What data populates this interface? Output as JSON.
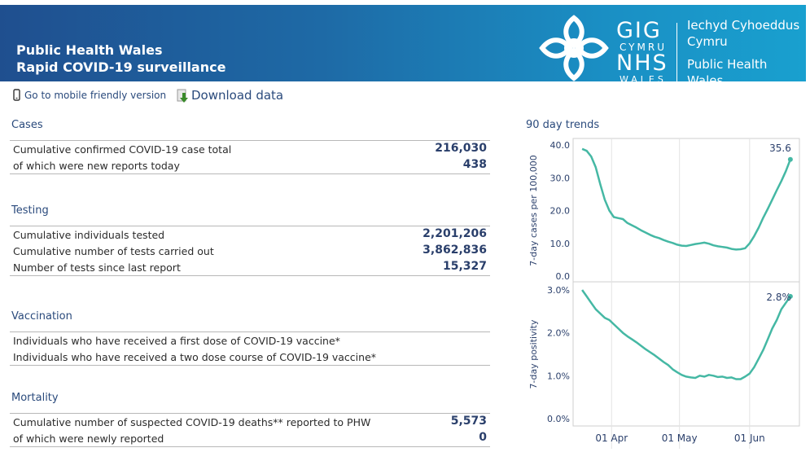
{
  "header": {
    "title_line1": "Public Health Wales",
    "title_line2": "Rapid COVID-19 surveillance",
    "logo_gig": "GIG",
    "logo_cymru": "CYMRU",
    "logo_nhs": "NHS",
    "logo_wales": "WALES",
    "org_cy_1": "Iechyd Cyhoeddus",
    "org_cy_2": "Cymru",
    "org_en_1": "Public Health",
    "org_en_2": "Wales"
  },
  "toolbar": {
    "mobile_icon": "mobile-phone-icon",
    "mobile_label": "Go to mobile friendly version",
    "download_icon": "download-icon",
    "download_label": "Download data"
  },
  "sections": {
    "cases": {
      "title": "Cases",
      "rows": [
        {
          "label": "Cumulative confirmed COVID-19 case total",
          "value": "216,030"
        },
        {
          "label": "of which were new reports today",
          "value": "438"
        }
      ]
    },
    "testing": {
      "title": "Testing",
      "rows": [
        {
          "label": "Cumulative individuals tested",
          "value": "2,201,206"
        },
        {
          "label": "Cumulative number of tests carried out",
          "value": "3,862,836"
        },
        {
          "label": "Number of tests since last report",
          "value": "15,327"
        }
      ]
    },
    "vaccination": {
      "title": "Vaccination",
      "rows": [
        {
          "label": "Individuals who have received a first dose of COVID-19 vaccine*",
          "value": ""
        },
        {
          "label": "Individuals who have received a two dose course of COVID-19 vaccine*",
          "value": ""
        }
      ]
    },
    "mortality": {
      "title": "Mortality",
      "rows": [
        {
          "label": "Cumulative number of suspected COVID-19 deaths** reported to PHW",
          "value": "5,573"
        },
        {
          "label": "of which were newly reported",
          "value": "0"
        }
      ]
    }
  },
  "trends": {
    "title": "90 day trends"
  },
  "colors": {
    "line": "#45b8a4",
    "banner_start": "#1f4f8f",
    "banner_end": "#19a0cf",
    "text_dark": "#2a3f6b"
  },
  "chart_data": [
    {
      "type": "line",
      "ylabel": "7-day cases per 100,000",
      "ylim": [
        0,
        40
      ],
      "yticks": [
        "0.0",
        "10.0",
        "20.0",
        "30.0",
        "40.0"
      ],
      "x_tick_labels": [
        "01 Apr",
        "01 May",
        "01 Jun"
      ],
      "end_label": "35.6",
      "grid": true,
      "series": [
        {
          "x": [
            "2021-03-19",
            "2021-03-21",
            "2021-03-23",
            "2021-03-25",
            "2021-03-27",
            "2021-03-29",
            "2021-03-31",
            "2021-04-02",
            "2021-04-04",
            "2021-04-06",
            "2021-04-08",
            "2021-04-10",
            "2021-04-12",
            "2021-04-14",
            "2021-04-16",
            "2021-04-18",
            "2021-04-20",
            "2021-04-22",
            "2021-04-24",
            "2021-04-26",
            "2021-04-28",
            "2021-04-30",
            "2021-05-02",
            "2021-05-04",
            "2021-05-06",
            "2021-05-08",
            "2021-05-10",
            "2021-05-12",
            "2021-05-14",
            "2021-05-16",
            "2021-05-18",
            "2021-05-20",
            "2021-05-22",
            "2021-05-24",
            "2021-05-26",
            "2021-05-28",
            "2021-05-30",
            "2021-06-01",
            "2021-06-03",
            "2021-06-05",
            "2021-06-07",
            "2021-06-09",
            "2021-06-11",
            "2021-06-13",
            "2021-06-15",
            "2021-06-17",
            "2021-06-19"
          ],
          "y": [
            38.8,
            38.2,
            36.5,
            33.2,
            28.0,
            23.3,
            20.0,
            18.0,
            17.7,
            17.4,
            16.2,
            15.5,
            14.8,
            14.0,
            13.3,
            12.6,
            12.0,
            11.6,
            11.0,
            10.5,
            10.1,
            9.6,
            9.3,
            9.2,
            9.5,
            9.8,
            10.0,
            10.2,
            9.9,
            9.4,
            9.1,
            8.9,
            8.7,
            8.3,
            8.1,
            8.2,
            8.5,
            10.0,
            12.2,
            14.8,
            17.8,
            20.5,
            23.3,
            26.2,
            29.0,
            32.0,
            35.6
          ]
        }
      ]
    },
    {
      "type": "line",
      "ylabel": "7-day positivity",
      "ylim": [
        0,
        3.0
      ],
      "yticks": [
        "0.0%",
        "1.0%",
        "2.0%",
        "3.0%"
      ],
      "x_tick_labels": [
        "01 Apr",
        "01 May",
        "01 Jun"
      ],
      "end_label": "2.8%",
      "grid": true,
      "series": [
        {
          "x": [
            "2021-03-19",
            "2021-03-21",
            "2021-03-23",
            "2021-03-25",
            "2021-03-27",
            "2021-03-29",
            "2021-03-31",
            "2021-04-02",
            "2021-04-04",
            "2021-04-06",
            "2021-04-08",
            "2021-04-10",
            "2021-04-12",
            "2021-04-14",
            "2021-04-16",
            "2021-04-18",
            "2021-04-20",
            "2021-04-22",
            "2021-04-24",
            "2021-04-26",
            "2021-04-28",
            "2021-04-30",
            "2021-05-02",
            "2021-05-04",
            "2021-05-06",
            "2021-05-08",
            "2021-05-10",
            "2021-05-12",
            "2021-05-14",
            "2021-05-16",
            "2021-05-18",
            "2021-05-20",
            "2021-05-22",
            "2021-05-24",
            "2021-05-26",
            "2021-05-28",
            "2021-05-30",
            "2021-06-01",
            "2021-06-03",
            "2021-06-05",
            "2021-06-07",
            "2021-06-09",
            "2021-06-11",
            "2021-06-13",
            "2021-06-15",
            "2021-06-17",
            "2021-06-19"
          ],
          "y": [
            3.0,
            2.85,
            2.7,
            2.55,
            2.45,
            2.35,
            2.3,
            2.2,
            2.1,
            2.0,
            1.92,
            1.85,
            1.78,
            1.7,
            1.62,
            1.55,
            1.48,
            1.4,
            1.32,
            1.25,
            1.15,
            1.08,
            1.02,
            0.98,
            0.96,
            0.95,
            1.0,
            0.98,
            1.02,
            1.0,
            0.97,
            0.98,
            0.95,
            0.96,
            0.92,
            0.92,
            0.98,
            1.05,
            1.2,
            1.4,
            1.6,
            1.85,
            2.1,
            2.3,
            2.55,
            2.7,
            2.85
          ]
        }
      ]
    }
  ]
}
